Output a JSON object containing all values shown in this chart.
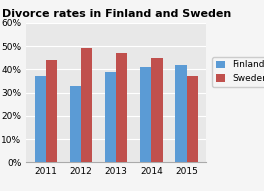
{
  "title": "Divorce rates in Finland and Sweden",
  "years": [
    "2011",
    "2012",
    "2013",
    "2014",
    "2015"
  ],
  "finland": [
    37,
    33,
    39,
    41,
    42
  ],
  "sweden": [
    44,
    49,
    47,
    45,
    37
  ],
  "finland_color": "#5B9BD5",
  "sweden_color": "#C0504D",
  "ylim": [
    0,
    60
  ],
  "yticks": [
    0,
    10,
    20,
    30,
    40,
    50,
    60
  ],
  "ytick_labels": [
    "0%",
    "10%",
    "20%",
    "30%",
    "40%",
    "50%",
    "60%"
  ],
  "legend_labels": [
    "Finland",
    "Sweden"
  ],
  "plot_bg_color": "#E8E8E8",
  "fig_bg_color": "#F5F5F5",
  "title_fontsize": 8,
  "tick_fontsize": 6.5,
  "legend_fontsize": 6.5,
  "bar_width": 0.32
}
